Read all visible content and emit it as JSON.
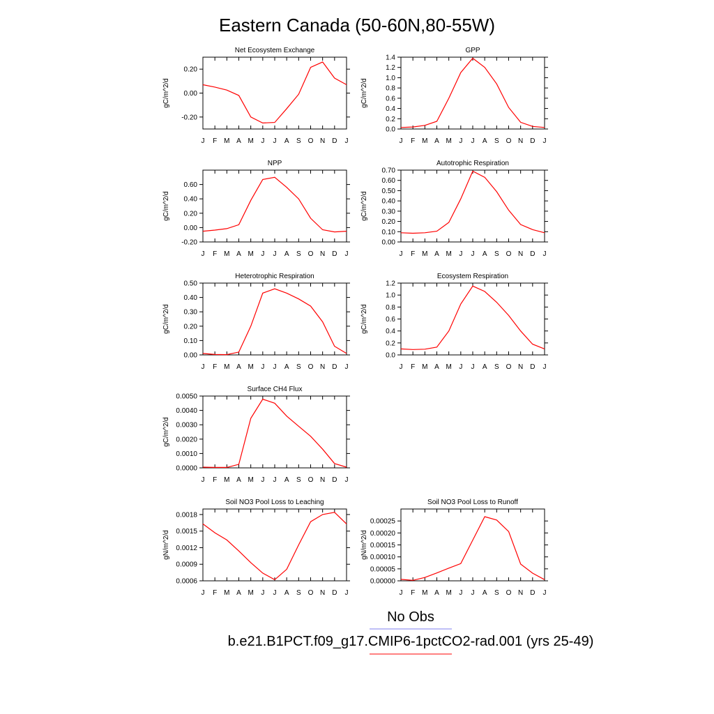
{
  "page": {
    "title": "Eastern Canada (50-60N,80-55W)",
    "legend": {
      "obs_label": "No Obs",
      "obs_color": "#7f7fef",
      "model_label": "b.e21.B1PCT.f09_g17.CMIP6-1pctCO2-rad.001 (yrs 25-49)",
      "model_color": "#ff0000"
    }
  },
  "chart_data": [
    {
      "type": "line",
      "title": "Net Ecosystem Exchange",
      "ylabel": "gC/m^2/d",
      "categories": [
        "J",
        "F",
        "M",
        "A",
        "M",
        "J",
        "J",
        "A",
        "S",
        "O",
        "N",
        "D",
        "J"
      ],
      "ylim": [
        -0.3,
        0.3
      ],
      "yticks": [
        -0.2,
        0.0,
        0.2
      ],
      "ytick_labels": [
        "-0.20",
        "0.00",
        "0.20"
      ],
      "series": [
        {
          "color": "#ff0000",
          "values": [
            0.07,
            0.05,
            0.025,
            -0.02,
            -0.2,
            -0.25,
            -0.245,
            -0.13,
            -0.01,
            0.215,
            0.26,
            0.125,
            0.07
          ]
        }
      ]
    },
    {
      "type": "line",
      "title": "GPP",
      "ylabel": "gC/m^2/d",
      "categories": [
        "J",
        "F",
        "M",
        "A",
        "M",
        "J",
        "J",
        "A",
        "S",
        "O",
        "N",
        "D",
        "J"
      ],
      "ylim": [
        0,
        1.4
      ],
      "yticks": [
        0,
        0.2,
        0.4,
        0.6,
        0.8,
        1.0,
        1.2,
        1.4
      ],
      "ytick_labels": [
        "0.0",
        "0.2",
        "0.4",
        "0.6",
        "0.8",
        "1.0",
        "1.2",
        "1.4"
      ],
      "series": [
        {
          "color": "#ff0000",
          "values": [
            0.03,
            0.04,
            0.07,
            0.15,
            0.6,
            1.1,
            1.38,
            1.2,
            0.88,
            0.42,
            0.13,
            0.05,
            0.03
          ]
        }
      ]
    },
    {
      "type": "line",
      "title": "NPP",
      "ylabel": "gC/m^2/d",
      "categories": [
        "J",
        "F",
        "M",
        "A",
        "M",
        "J",
        "J",
        "A",
        "S",
        "O",
        "N",
        "D",
        "J"
      ],
      "ylim": [
        -0.2,
        0.8
      ],
      "yticks": [
        -0.2,
        0,
        0.2,
        0.4,
        0.6
      ],
      "ytick_labels": [
        "-0.20",
        "0.00",
        "0.20",
        "0.40",
        "0.60"
      ],
      "series": [
        {
          "color": "#ff0000",
          "values": [
            -0.05,
            -0.035,
            -0.015,
            0.04,
            0.38,
            0.67,
            0.7,
            0.56,
            0.4,
            0.13,
            -0.03,
            -0.06,
            -0.05
          ]
        }
      ]
    },
    {
      "type": "line",
      "title": "Autotrophic Respiration",
      "ylabel": "gC/m^2/d",
      "categories": [
        "J",
        "F",
        "M",
        "A",
        "M",
        "J",
        "J",
        "A",
        "S",
        "O",
        "N",
        "D",
        "J"
      ],
      "ylim": [
        0,
        0.7
      ],
      "yticks": [
        0,
        0.1,
        0.2,
        0.3,
        0.4,
        0.5,
        0.6,
        0.7
      ],
      "ytick_labels": [
        "0.00",
        "0.10",
        "0.20",
        "0.30",
        "0.40",
        "0.50",
        "0.60",
        "0.70"
      ],
      "series": [
        {
          "color": "#ff0000",
          "values": [
            0.09,
            0.085,
            0.09,
            0.105,
            0.19,
            0.42,
            0.69,
            0.63,
            0.49,
            0.31,
            0.17,
            0.12,
            0.09
          ]
        }
      ]
    },
    {
      "type": "line",
      "title": "Heterotrophic Respiration",
      "ylabel": "gC/m^2/d",
      "categories": [
        "J",
        "F",
        "M",
        "A",
        "M",
        "J",
        "J",
        "A",
        "S",
        "O",
        "N",
        "D",
        "J"
      ],
      "ylim": [
        0,
        0.5
      ],
      "yticks": [
        0,
        0.1,
        0.2,
        0.3,
        0.4,
        0.5
      ],
      "ytick_labels": [
        "0.00",
        "0.10",
        "0.20",
        "0.30",
        "0.40",
        "0.50"
      ],
      "series": [
        {
          "color": "#ff0000",
          "values": [
            0.01,
            0.003,
            0.002,
            0.02,
            0.2,
            0.43,
            0.46,
            0.43,
            0.39,
            0.34,
            0.23,
            0.06,
            0.01
          ]
        }
      ]
    },
    {
      "type": "line",
      "title": "Ecosystem Respiration",
      "ylabel": "gC/m^2/d",
      "categories": [
        "J",
        "F",
        "M",
        "A",
        "M",
        "J",
        "J",
        "A",
        "S",
        "O",
        "N",
        "D",
        "J"
      ],
      "ylim": [
        0,
        1.2
      ],
      "yticks": [
        0,
        0.2,
        0.4,
        0.6,
        0.8,
        1.0,
        1.2
      ],
      "ytick_labels": [
        "0.0",
        "0.2",
        "0.4",
        "0.6",
        "0.8",
        "1.0",
        "1.2"
      ],
      "series": [
        {
          "color": "#ff0000",
          "values": [
            0.1,
            0.09,
            0.095,
            0.13,
            0.4,
            0.85,
            1.15,
            1.06,
            0.88,
            0.66,
            0.4,
            0.18,
            0.1
          ]
        }
      ]
    },
    {
      "type": "line",
      "title": "Surface CH4 Flux",
      "ylabel": "gC/m^2/d",
      "categories": [
        "J",
        "F",
        "M",
        "A",
        "M",
        "J",
        "J",
        "A",
        "S",
        "O",
        "N",
        "D",
        "J"
      ],
      "ylim": [
        0,
        0.005
      ],
      "yticks": [
        0,
        0.001,
        0.002,
        0.003,
        0.004,
        0.005
      ],
      "ytick_labels": [
        "0.0000",
        "0.0010",
        "0.0020",
        "0.0030",
        "0.0040",
        "0.0050"
      ],
      "series": [
        {
          "color": "#ff0000",
          "values": [
            5e-05,
            3e-05,
            3e-05,
            0.00025,
            0.00345,
            0.00478,
            0.0045,
            0.0036,
            0.0029,
            0.0022,
            0.0013,
            0.0003,
            5e-05
          ]
        }
      ]
    },
    {
      "type": "line",
      "title": "Soil NO3 Pool Loss to Leaching",
      "ylabel": "gN/m^2/d",
      "categories": [
        "J",
        "F",
        "M",
        "A",
        "M",
        "J",
        "J",
        "A",
        "S",
        "O",
        "N",
        "D",
        "J"
      ],
      "ylim": [
        0.0006,
        0.0019
      ],
      "yticks": [
        0.0006,
        0.0009,
        0.0012,
        0.0015,
        0.0018
      ],
      "ytick_labels": [
        "0.0006",
        "0.0009",
        "0.0012",
        "0.0015",
        "0.0018"
      ],
      "series": [
        {
          "color": "#ff0000",
          "values": [
            0.00163,
            0.00147,
            0.00134,
            0.00114,
            0.00093,
            0.00074,
            0.00062,
            0.00081,
            0.00125,
            0.00167,
            0.0018,
            0.00184,
            0.00163
          ]
        }
      ]
    },
    {
      "type": "line",
      "title": "Soil NO3 Pool Loss to Runoff",
      "ylabel": "gN/m^2/d",
      "categories": [
        "J",
        "F",
        "M",
        "A",
        "M",
        "J",
        "J",
        "A",
        "S",
        "O",
        "N",
        "D",
        "J"
      ],
      "ylim": [
        0,
        0.0003
      ],
      "yticks": [
        0,
        5e-05,
        0.0001,
        0.00015,
        0.0002,
        0.00025
      ],
      "ytick_labels": [
        "0.00000",
        "0.00005",
        "0.00010",
        "0.00015",
        "0.00020",
        "0.00025"
      ],
      "series": [
        {
          "color": "#ff0000",
          "values": [
            6e-06,
            2e-06,
            1.4e-05,
            3.3e-05,
            5.3e-05,
            7.2e-05,
            0.00017,
            0.000268,
            0.000254,
            0.000206,
            7e-05,
            3.2e-05,
            5e-06
          ]
        }
      ]
    }
  ]
}
